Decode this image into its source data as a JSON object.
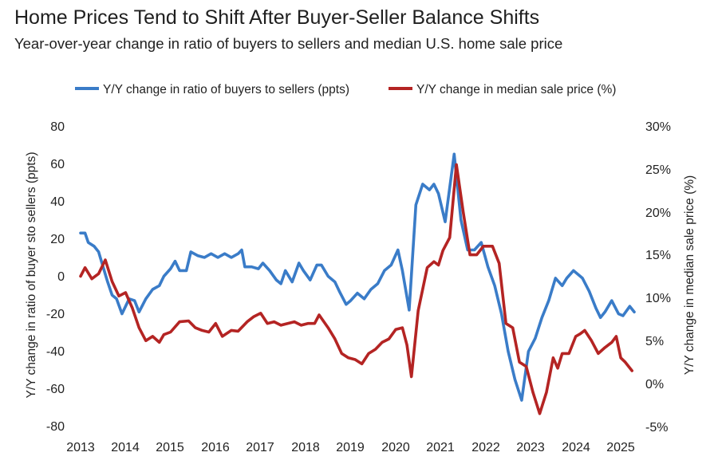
{
  "title": "Home Prices Tend to Shift After Buyer-Seller Balance Shifts",
  "subtitle": "Year-over-year change in ratio of buyers to sellers and median U.S. home sale price",
  "colors": {
    "blue": "#3a7cc8",
    "red": "#b42423"
  },
  "chart_data": {
    "type": "line",
    "x_ticks": [
      "2013",
      "2014",
      "2015",
      "2016",
      "2017",
      "2018",
      "2019",
      "2020",
      "2021",
      "2022",
      "2023",
      "2024",
      "2025"
    ],
    "y_left": {
      "label": "Y/Y change in ratio of buyer sto sellers (ppts)",
      "ticks": [
        "80",
        "60",
        "40",
        "20",
        "0",
        "-20",
        "-40",
        "-60",
        "-80"
      ],
      "range": [
        -80,
        80
      ]
    },
    "y_right": {
      "label": "Y/Y change in median sale price (%)",
      "ticks": [
        "30%",
        "25%",
        "20%",
        "15%",
        "10%",
        "5%",
        "0%",
        "-5%"
      ],
      "range": [
        -5,
        30
      ]
    },
    "series": [
      {
        "name": "Y/Y change in ratio of buyers to sellers (ppts)",
        "axis": "left",
        "color": "#3a7cc8",
        "points": [
          [
            2013.0,
            23
          ],
          [
            2013.1,
            23
          ],
          [
            2013.17,
            18
          ],
          [
            2013.3,
            16
          ],
          [
            2013.4,
            13
          ],
          [
            2013.5,
            5
          ],
          [
            2013.6,
            -3
          ],
          [
            2013.7,
            -10
          ],
          [
            2013.8,
            -12
          ],
          [
            2013.92,
            -20
          ],
          [
            2014.08,
            -12
          ],
          [
            2014.2,
            -13
          ],
          [
            2014.3,
            -19
          ],
          [
            2014.45,
            -12
          ],
          [
            2014.6,
            -7
          ],
          [
            2014.75,
            -5
          ],
          [
            2014.85,
            0
          ],
          [
            2015.0,
            4
          ],
          [
            2015.1,
            8
          ],
          [
            2015.2,
            3
          ],
          [
            2015.35,
            3
          ],
          [
            2015.45,
            13
          ],
          [
            2015.6,
            11
          ],
          [
            2015.75,
            10
          ],
          [
            2015.9,
            12
          ],
          [
            2016.05,
            10
          ],
          [
            2016.2,
            12
          ],
          [
            2016.35,
            10
          ],
          [
            2016.5,
            12
          ],
          [
            2016.58,
            14
          ],
          [
            2016.65,
            5
          ],
          [
            2016.8,
            5
          ],
          [
            2016.95,
            4
          ],
          [
            2017.05,
            7
          ],
          [
            2017.2,
            3
          ],
          [
            2017.35,
            -2
          ],
          [
            2017.45,
            -4
          ],
          [
            2017.55,
            3
          ],
          [
            2017.7,
            -3
          ],
          [
            2017.85,
            7
          ],
          [
            2017.95,
            3
          ],
          [
            2018.1,
            -2
          ],
          [
            2018.25,
            6
          ],
          [
            2018.35,
            6
          ],
          [
            2018.5,
            0
          ],
          [
            2018.65,
            -3
          ],
          [
            2018.75,
            -8
          ],
          [
            2018.9,
            -15
          ],
          [
            2019.0,
            -13
          ],
          [
            2019.15,
            -9
          ],
          [
            2019.3,
            -12
          ],
          [
            2019.45,
            -7
          ],
          [
            2019.6,
            -4
          ],
          [
            2019.75,
            3
          ],
          [
            2019.9,
            6
          ],
          [
            2020.05,
            14
          ],
          [
            2020.15,
            3
          ],
          [
            2020.3,
            -18
          ],
          [
            2020.45,
            38
          ],
          [
            2020.6,
            49
          ],
          [
            2020.75,
            46
          ],
          [
            2020.85,
            49
          ],
          [
            2020.95,
            44
          ],
          [
            2021.1,
            29
          ],
          [
            2021.3,
            65
          ],
          [
            2021.45,
            30
          ],
          [
            2021.6,
            14
          ],
          [
            2021.75,
            14
          ],
          [
            2021.9,
            18
          ],
          [
            2022.05,
            5
          ],
          [
            2022.2,
            -5
          ],
          [
            2022.35,
            -20
          ],
          [
            2022.5,
            -40
          ],
          [
            2022.65,
            -55
          ],
          [
            2022.8,
            -66
          ],
          [
            2022.95,
            -40
          ],
          [
            2023.1,
            -33
          ],
          [
            2023.25,
            -22
          ],
          [
            2023.4,
            -13
          ],
          [
            2023.55,
            -1
          ],
          [
            2023.7,
            -5
          ],
          [
            2023.8,
            -1
          ],
          [
            2023.95,
            3
          ],
          [
            2024.05,
            1
          ],
          [
            2024.15,
            -1
          ],
          [
            2024.3,
            -8
          ],
          [
            2024.45,
            -17
          ],
          [
            2024.55,
            -22
          ],
          [
            2024.65,
            -19
          ],
          [
            2024.8,
            -13
          ],
          [
            2024.95,
            -20
          ],
          [
            2025.05,
            -21
          ],
          [
            2025.2,
            -16
          ],
          [
            2025.3,
            -19
          ]
        ]
      },
      {
        "name": "Y/Y change in median sale price (%)",
        "axis": "right",
        "color": "#b42423",
        "points": [
          [
            2013.0,
            12.5
          ],
          [
            2013.1,
            13.5
          ],
          [
            2013.25,
            12.2
          ],
          [
            2013.4,
            12.8
          ],
          [
            2013.55,
            14.4
          ],
          [
            2013.7,
            11.9
          ],
          [
            2013.85,
            10.2
          ],
          [
            2014.0,
            10.6
          ],
          [
            2014.15,
            8.8
          ],
          [
            2014.3,
            6.5
          ],
          [
            2014.45,
            5.0
          ],
          [
            2014.6,
            5.5
          ],
          [
            2014.75,
            4.8
          ],
          [
            2014.85,
            5.7
          ],
          [
            2015.0,
            6.0
          ],
          [
            2015.2,
            7.2
          ],
          [
            2015.4,
            7.3
          ],
          [
            2015.55,
            6.5
          ],
          [
            2015.7,
            6.2
          ],
          [
            2015.85,
            6.0
          ],
          [
            2016.0,
            7.0
          ],
          [
            2016.15,
            5.5
          ],
          [
            2016.35,
            6.2
          ],
          [
            2016.5,
            6.1
          ],
          [
            2016.7,
            7.2
          ],
          [
            2016.85,
            7.8
          ],
          [
            2017.0,
            8.2
          ],
          [
            2017.15,
            7.0
          ],
          [
            2017.3,
            7.2
          ],
          [
            2017.45,
            6.8
          ],
          [
            2017.6,
            7.0
          ],
          [
            2017.75,
            7.2
          ],
          [
            2017.9,
            6.8
          ],
          [
            2018.05,
            7.0
          ],
          [
            2018.2,
            7.0
          ],
          [
            2018.3,
            8.0
          ],
          [
            2018.5,
            6.5
          ],
          [
            2018.65,
            5.2
          ],
          [
            2018.8,
            3.5
          ],
          [
            2018.95,
            3.0
          ],
          [
            2019.1,
            2.8
          ],
          [
            2019.25,
            2.3
          ],
          [
            2019.4,
            3.5
          ],
          [
            2019.55,
            4.0
          ],
          [
            2019.7,
            4.8
          ],
          [
            2019.85,
            5.2
          ],
          [
            2020.0,
            6.3
          ],
          [
            2020.15,
            6.5
          ],
          [
            2020.25,
            4.5
          ],
          [
            2020.35,
            0.8
          ],
          [
            2020.5,
            8.5
          ],
          [
            2020.7,
            13.5
          ],
          [
            2020.85,
            14.2
          ],
          [
            2020.95,
            13.8
          ],
          [
            2021.05,
            15.5
          ],
          [
            2021.2,
            17.0
          ],
          [
            2021.35,
            25.5
          ],
          [
            2021.5,
            20.0
          ],
          [
            2021.65,
            15.0
          ],
          [
            2021.8,
            15.0
          ],
          [
            2021.95,
            16.0
          ],
          [
            2022.15,
            16.0
          ],
          [
            2022.3,
            14.0
          ],
          [
            2022.45,
            7.0
          ],
          [
            2022.6,
            6.5
          ],
          [
            2022.75,
            2.5
          ],
          [
            2022.9,
            2.0
          ],
          [
            2023.05,
            -1.0
          ],
          [
            2023.2,
            -3.5
          ],
          [
            2023.35,
            -1.0
          ],
          [
            2023.5,
            3.0
          ],
          [
            2023.6,
            1.8
          ],
          [
            2023.7,
            3.5
          ],
          [
            2023.85,
            3.5
          ],
          [
            2024.0,
            5.5
          ],
          [
            2024.1,
            5.8
          ],
          [
            2024.2,
            6.2
          ],
          [
            2024.35,
            5.0
          ],
          [
            2024.5,
            3.5
          ],
          [
            2024.65,
            4.2
          ],
          [
            2024.8,
            4.8
          ],
          [
            2024.9,
            5.5
          ],
          [
            2025.0,
            3.0
          ],
          [
            2025.1,
            2.5
          ],
          [
            2025.25,
            1.5
          ]
        ]
      }
    ]
  }
}
